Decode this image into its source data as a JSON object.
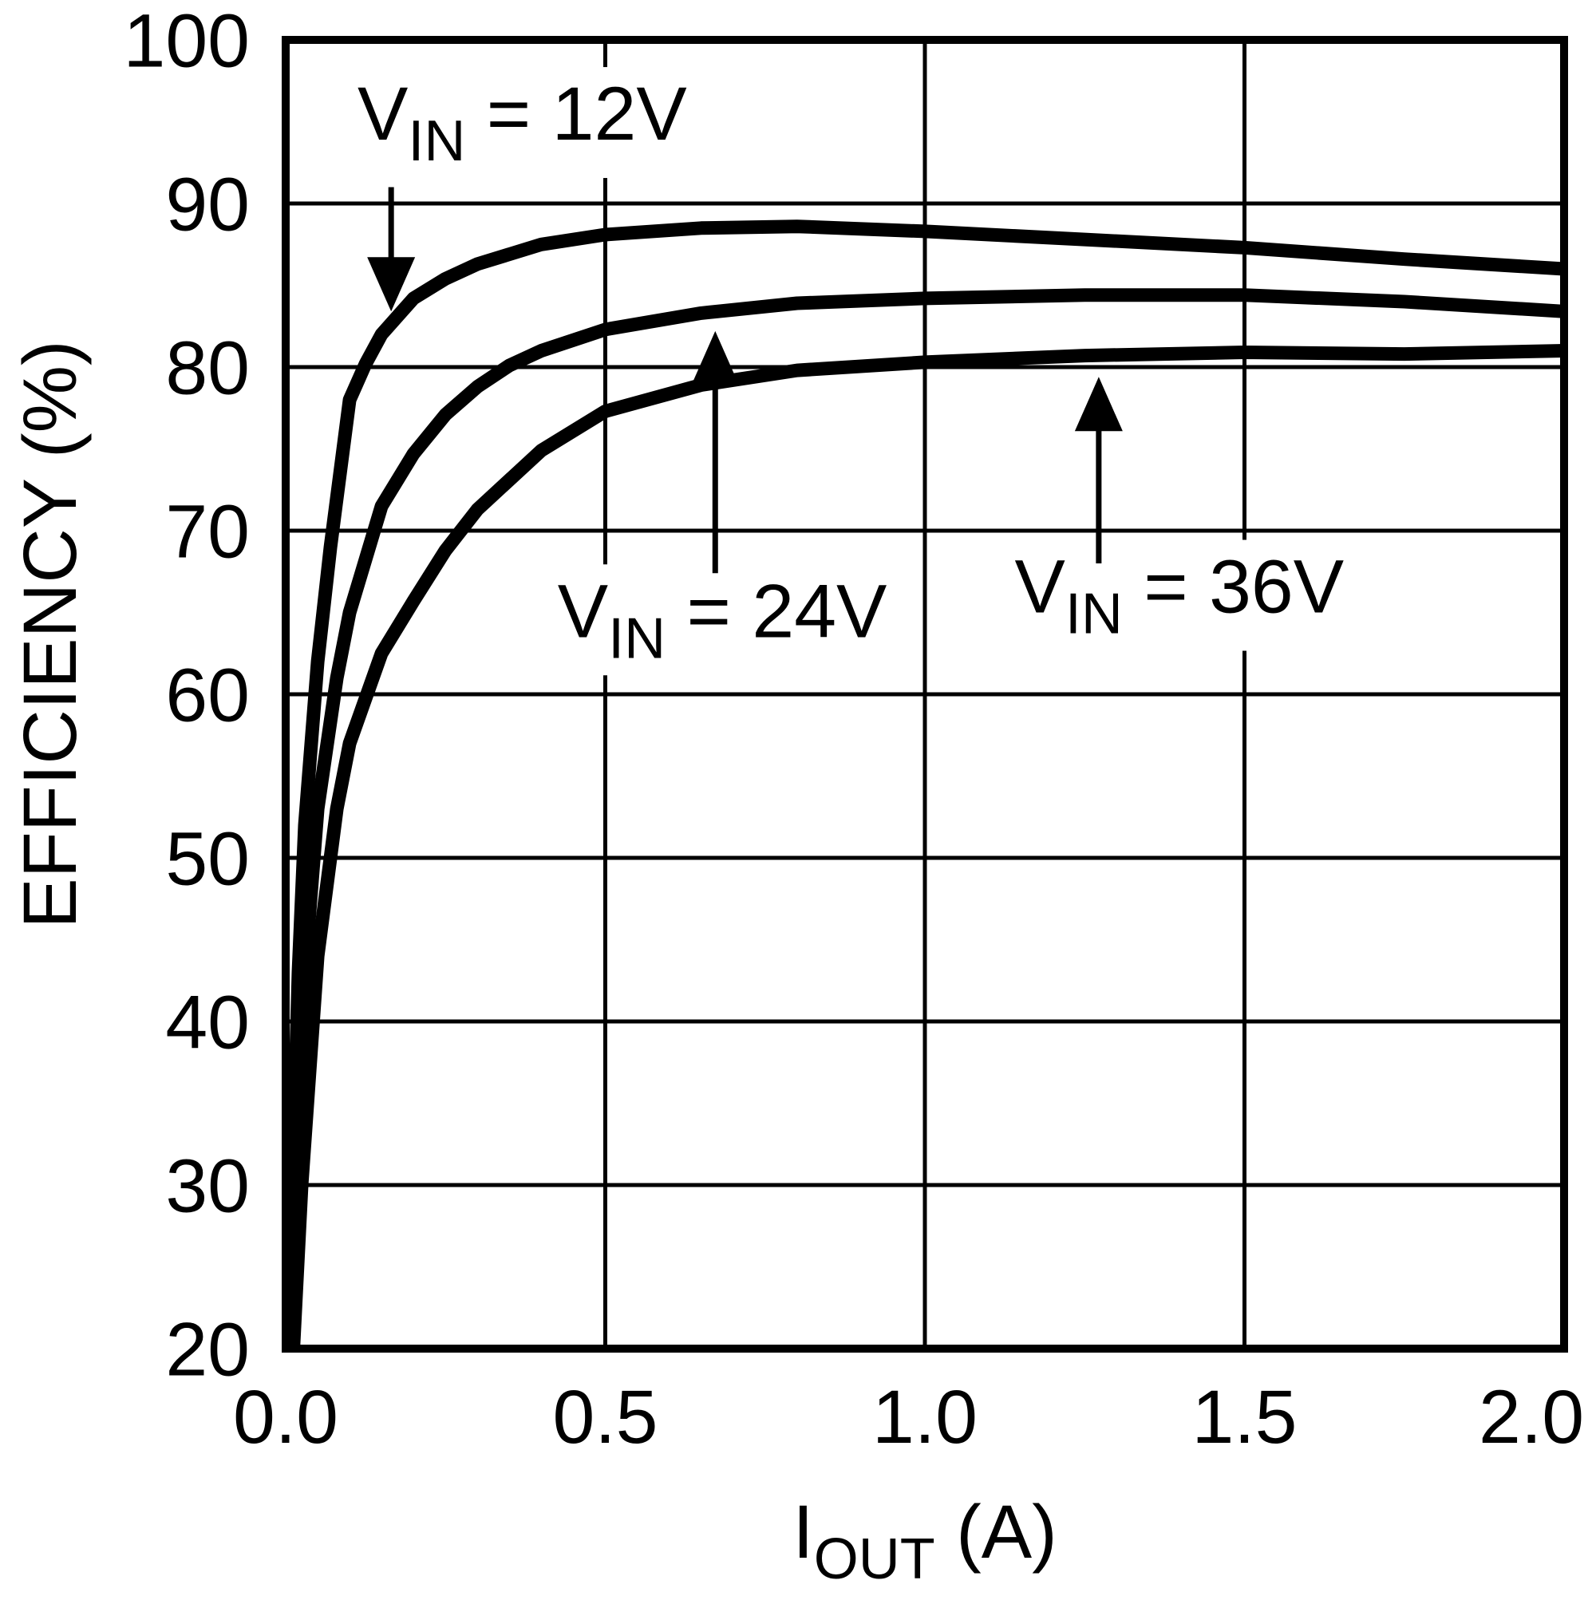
{
  "chart_data": {
    "type": "line",
    "title": "",
    "xlabel": {
      "pre": "I",
      "sub": "OUT",
      "post": " (A)",
      "text": "IOUT (A)"
    },
    "ylabel": "EFFICIENCY (%)",
    "xlim": [
      0.0,
      2.0
    ],
    "ylim": [
      20,
      100
    ],
    "grid": true,
    "legend_position": "none",
    "xticks": [
      {
        "v": 0.0,
        "label": "0.0"
      },
      {
        "v": 0.5,
        "label": "0.5"
      },
      {
        "v": 1.0,
        "label": "1.0"
      },
      {
        "v": 1.5,
        "label": "1.5"
      },
      {
        "v": 2.0,
        "label": "2.0"
      }
    ],
    "yticks": [
      {
        "v": 100,
        "label": "100"
      },
      {
        "v": 90,
        "label": "90"
      },
      {
        "v": 80,
        "label": "80"
      },
      {
        "v": 70,
        "label": "70"
      },
      {
        "v": 60,
        "label": "60"
      },
      {
        "v": 50,
        "label": "50"
      },
      {
        "v": 40,
        "label": "40"
      },
      {
        "v": 30,
        "label": "30"
      },
      {
        "v": 20,
        "label": "20"
      }
    ],
    "series": [
      {
        "name": "VIN = 12V",
        "slug": "vin-12v",
        "points": [
          [
            0.005,
            20
          ],
          [
            0.01,
            29
          ],
          [
            0.02,
            43
          ],
          [
            0.03,
            52
          ],
          [
            0.05,
            62
          ],
          [
            0.07,
            69
          ],
          [
            0.1,
            78
          ],
          [
            0.125,
            80.2
          ],
          [
            0.15,
            82
          ],
          [
            0.2,
            84.2
          ],
          [
            0.25,
            85.4
          ],
          [
            0.3,
            86.3
          ],
          [
            0.4,
            87.5
          ],
          [
            0.5,
            88.1
          ],
          [
            0.65,
            88.5
          ],
          [
            0.8,
            88.6
          ],
          [
            1.0,
            88.3
          ],
          [
            1.25,
            87.8
          ],
          [
            1.5,
            87.3
          ],
          [
            1.75,
            86.6
          ],
          [
            2.0,
            86.0
          ]
        ]
      },
      {
        "name": "VIN = 24V",
        "slug": "vin-24v",
        "points": [
          [
            0.008,
            20
          ],
          [
            0.015,
            29
          ],
          [
            0.03,
            43
          ],
          [
            0.05,
            53
          ],
          [
            0.08,
            61
          ],
          [
            0.1,
            65
          ],
          [
            0.15,
            71.5
          ],
          [
            0.2,
            74.7
          ],
          [
            0.25,
            77.1
          ],
          [
            0.3,
            78.8
          ],
          [
            0.35,
            80.1
          ],
          [
            0.4,
            81.0
          ],
          [
            0.5,
            82.3
          ],
          [
            0.65,
            83.3
          ],
          [
            0.8,
            83.9
          ],
          [
            1.0,
            84.2
          ],
          [
            1.25,
            84.4
          ],
          [
            1.5,
            84.4
          ],
          [
            1.75,
            84.0
          ],
          [
            2.0,
            83.4
          ]
        ]
      },
      {
        "name": "VIN = 36V",
        "slug": "vin-36v",
        "points": [
          [
            0.012,
            20
          ],
          [
            0.025,
            30
          ],
          [
            0.05,
            44
          ],
          [
            0.08,
            53
          ],
          [
            0.1,
            57
          ],
          [
            0.15,
            62.5
          ],
          [
            0.2,
            65.7
          ],
          [
            0.25,
            68.8
          ],
          [
            0.3,
            71.3
          ],
          [
            0.4,
            74.9
          ],
          [
            0.5,
            77.3
          ],
          [
            0.65,
            78.9
          ],
          [
            0.8,
            79.8
          ],
          [
            1.0,
            80.3
          ],
          [
            1.25,
            80.7
          ],
          [
            1.5,
            80.9
          ],
          [
            1.75,
            80.8
          ],
          [
            2.0,
            81.0
          ]
        ]
      }
    ],
    "annotations": [
      {
        "slug": "vin-12v",
        "text": "VIN = 12V",
        "label": {
          "pre": "V",
          "sub": "IN",
          "post": " = 12V"
        },
        "label_pos": [
          0.37,
          93.9
        ],
        "arrow": {
          "x": 0.165,
          "from": 91.0,
          "to": 83.4,
          "dir": "down"
        }
      },
      {
        "slug": "vin-24v",
        "text": "VIN = 24V",
        "label": {
          "pre": "V",
          "sub": "IN",
          "post": " = 24V"
        },
        "label_pos": [
          0.683,
          63.5
        ],
        "arrow": {
          "x": 0.672,
          "from": 67.4,
          "to": 82.2,
          "dir": "up"
        }
      },
      {
        "slug": "vin-36v",
        "text": "VIN = 36V",
        "label": {
          "pre": "V",
          "sub": "IN",
          "post": " = 36V"
        },
        "label_pos": [
          1.398,
          65.0
        ],
        "arrow": {
          "x": 1.272,
          "from": 68.0,
          "to": 79.4,
          "dir": "up"
        }
      }
    ],
    "colors": {
      "foreground": "#000000",
      "background": "#ffffff"
    }
  }
}
